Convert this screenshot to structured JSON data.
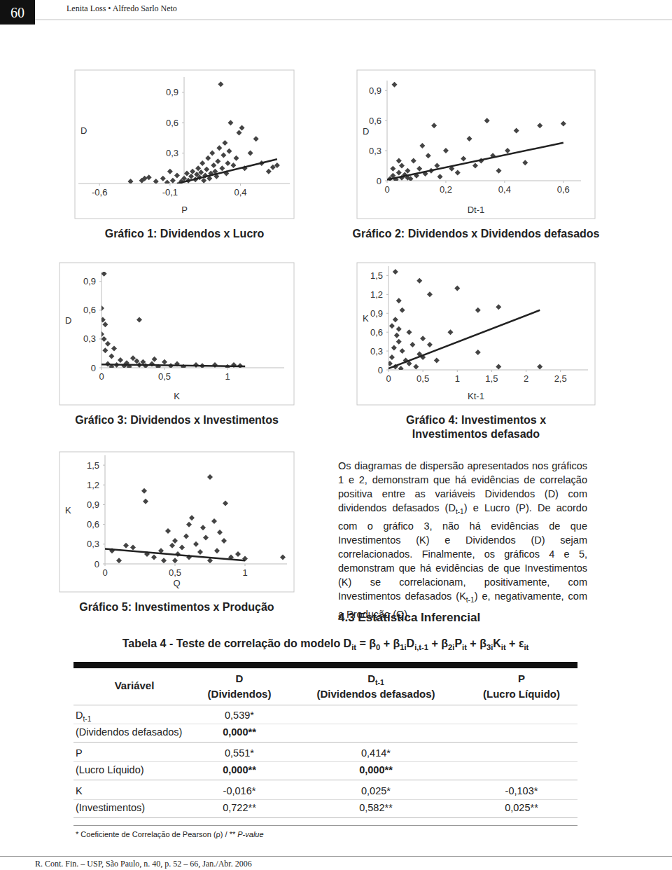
{
  "header": {
    "page": "60",
    "authors": "Lenita Loss  •  Alfredo Sarlo Neto"
  },
  "chart_data": [
    {
      "type": "scatter",
      "title": "Gráfico 1: Dividendos x Lucro",
      "xlabel": "P",
      "ylabel": "D",
      "xlim": [
        -0.75,
        0.75
      ],
      "ylim": [
        0,
        1.05
      ],
      "xticks": [
        {
          "value": -0.6,
          "label": "-0,6"
        },
        {
          "value": -0.1,
          "label": "-0,1"
        },
        {
          "value": 0.4,
          "label": "0,4"
        }
      ],
      "yticks": [
        {
          "value": 0.3,
          "label": "0,3"
        },
        {
          "value": 0.6,
          "label": "0,6"
        },
        {
          "value": 0.9,
          "label": "0,9"
        }
      ],
      "series": [
        {
          "type": "scatter",
          "marker": "diamond",
          "color": "#444444",
          "x": [
            -0.38,
            -0.3,
            -0.28,
            -0.25,
            -0.2,
            -0.15,
            -0.12,
            -0.1,
            -0.08,
            -0.05,
            -0.02,
            0,
            0.02,
            0.03,
            0.05,
            0.06,
            0.08,
            0.09,
            0.1,
            0.11,
            0.12,
            0.13,
            0.14,
            0.15,
            0.16,
            0.17,
            0.18,
            0.19,
            0.2,
            0.21,
            0.22,
            0.23,
            0.24,
            0.25,
            0.26,
            0.27,
            0.28,
            0.29,
            0.3,
            0.31,
            0.32,
            0.33,
            0.35,
            0.37,
            0.39,
            0.41,
            0.43,
            0.47,
            0.51,
            0.55,
            0.6,
            0.63,
            0.66
          ],
          "values": [
            0.02,
            0.03,
            0.05,
            0.06,
            0.02,
            0.05,
            0.01,
            0.12,
            0.03,
            0.08,
            0.02,
            0.05,
            0.1,
            0.03,
            0.07,
            0.12,
            0.04,
            0.09,
            0.15,
            0.06,
            0.11,
            0.2,
            0.03,
            0.08,
            0.14,
            0.25,
            0.05,
            0.1,
            0.3,
            0.18,
            0.12,
            0.07,
            0.22,
            0.35,
            0.98,
            0.15,
            0.28,
            0.4,
            0.1,
            0.2,
            0.32,
            0.6,
            0.18,
            0.25,
            0.5,
            0.55,
            0.15,
            0.3,
            0.44,
            0.2,
            0.12,
            0.16,
            0.18
          ]
        },
        {
          "type": "line",
          "line_style": "solid",
          "color": "#222222",
          "x": [
            -0.05,
            0.66
          ],
          "values": [
            0,
            0.24
          ]
        }
      ]
    },
    {
      "type": "scatter",
      "title": "Gráfico 2: Dividendos x Dividendos defasados",
      "xlabel": "Dt-1",
      "ylabel": "D",
      "xlim": [
        0,
        0.66
      ],
      "ylim": [
        0,
        1.0
      ],
      "xticks": [
        0,
        {
          "value": 0.2,
          "label": "0,2"
        },
        {
          "value": 0.4,
          "label": "0,4"
        },
        {
          "value": 0.6,
          "label": "0,6"
        }
      ],
      "yticks": [
        0,
        {
          "value": 0.3,
          "label": "0,3"
        },
        {
          "value": 0.6,
          "label": "0,6"
        },
        {
          "value": 0.9,
          "label": "0,9"
        }
      ],
      "series": [
        {
          "type": "scatter",
          "marker": "diamond",
          "color": "#444444",
          "x": [
            0.01,
            0.02,
            0.02,
            0.025,
            0.03,
            0.04,
            0.04,
            0.05,
            0.05,
            0.06,
            0.07,
            0.07,
            0.08,
            0.09,
            0.1,
            0.11,
            0.12,
            0.13,
            0.14,
            0.15,
            0.16,
            0.17,
            0.18,
            0.2,
            0.22,
            0.24,
            0.26,
            0.28,
            0.3,
            0.32,
            0.34,
            0.36,
            0.38,
            0.41,
            0.44,
            0.47,
            0.52,
            0.6
          ],
          "values": [
            0.02,
            0.05,
            0.12,
            0.96,
            0.01,
            0.08,
            0.2,
            0.03,
            0.15,
            0.06,
            0.1,
            0.03,
            0.02,
            0.2,
            0.05,
            0.12,
            0.35,
            0.07,
            0.25,
            0.1,
            0.55,
            0.15,
            0.04,
            0.3,
            0.12,
            0.08,
            0.22,
            0.42,
            0.15,
            0.2,
            0.6,
            0.25,
            0.1,
            0.3,
            0.5,
            0.18,
            0.55,
            0.57
          ]
        },
        {
          "type": "line",
          "line_style": "solid",
          "color": "#222222",
          "x": [
            0,
            0.6
          ],
          "values": [
            0.01,
            0.38
          ]
        }
      ]
    },
    {
      "type": "scatter",
      "title": "Gráfico 3: Dividendos x Investimentos",
      "xlabel": "K",
      "ylabel": "D",
      "xlim": [
        0,
        1.45
      ],
      "ylim": [
        0,
        1.0
      ],
      "xticks": [
        0,
        {
          "value": 0.5,
          "label": "0,5"
        },
        1
      ],
      "yticks": [
        0,
        {
          "value": 0.3,
          "label": "0,3"
        },
        {
          "value": 0.6,
          "label": "0,6"
        },
        {
          "value": 0.9,
          "label": "0,9"
        }
      ],
      "series": [
        {
          "type": "scatter",
          "marker": "diamond",
          "color": "#444444",
          "x": [
            0.02,
            0,
            0.01,
            0.03,
            0,
            0.02,
            0.05,
            0.03,
            0.08,
            0.1,
            0.15,
            0.2,
            0.25,
            0.3,
            0.33,
            0.35,
            0.4,
            0.45,
            0.3,
            0.5,
            0.55,
            0.6,
            0.65,
            0.75,
            0.8,
            0.9,
            1.0,
            1.05,
            1.1,
            0.12,
            0.18,
            0.05,
            0.22,
            0.28,
            0.42,
            0.08
          ],
          "values": [
            0.98,
            0.62,
            0.5,
            0.45,
            0.35,
            0.3,
            0.25,
            0.18,
            0.12,
            0.2,
            0.08,
            0.05,
            0.1,
            0.03,
            0.06,
            0.02,
            0.04,
            0.01,
            0.5,
            0.06,
            0.02,
            0.04,
            0.01,
            0.03,
            0.02,
            0.03,
            0.01,
            0.03,
            0.02,
            0.03,
            0.02,
            0.04,
            0.01,
            0.07,
            0.09,
            0.01
          ]
        },
        {
          "type": "line",
          "line_style": "solid",
          "color": "#222222",
          "x": [
            0,
            1.14
          ],
          "values": [
            0.035,
            0.015
          ]
        }
      ]
    },
    {
      "type": "scatter",
      "title": [
        "Gráfico 4: Investimentos x",
        "Investimentos defasado"
      ],
      "xlabel": "Kt-1",
      "ylabel": "K",
      "xlim": [
        0,
        2.9
      ],
      "ylim": [
        0,
        1.65
      ],
      "xticks": [
        0,
        {
          "value": 0.5,
          "label": "0,5"
        },
        1,
        {
          "value": 1.5,
          "label": "1,5"
        },
        2,
        {
          "value": 2.5,
          "label": "2,5"
        }
      ],
      "yticks": [
        0,
        {
          "value": 0.3,
          "label": "0,3"
        },
        {
          "value": 0.6,
          "label": "0,6"
        },
        {
          "value": 0.9,
          "label": "0,9"
        },
        {
          "value": 1.2,
          "label": "1,2"
        },
        {
          "value": 1.5,
          "label": "1,5"
        }
      ],
      "series": [
        {
          "type": "scatter",
          "marker": "diamond",
          "color": "#444444",
          "x": [
            0.1,
            0.45,
            0.15,
            0.2,
            0.1,
            0.05,
            0.15,
            0.3,
            0.6,
            1.0,
            1.3,
            0.9,
            1.6,
            1.3,
            2.2,
            1.6,
            0.5,
            0.3,
            0.1,
            0.05,
            0.2,
            0.35,
            0.25,
            0.4,
            0.15,
            0.08,
            0.12,
            0.6,
            0.7,
            0.5,
            0.02,
            0.18,
            0.45
          ],
          "values": [
            1.56,
            1.42,
            1.1,
            0.95,
            0.8,
            0.7,
            0.65,
            0.6,
            1.2,
            1.3,
            0.95,
            0.6,
            1.0,
            0.28,
            0.05,
            0.05,
            0.2,
            0.1,
            0.05,
            0.2,
            0.3,
            0.4,
            0.15,
            0.05,
            0.45,
            0.35,
            0.55,
            0.4,
            0.15,
            0.5,
            0.1,
            0.02,
            0.25
          ]
        },
        {
          "type": "line",
          "line_style": "solid",
          "color": "#222222",
          "x": [
            0,
            2.2
          ],
          "values": [
            0.02,
            0.95
          ]
        }
      ]
    },
    {
      "type": "scatter",
      "title": "Gráfico 5: Investimentos x Produção",
      "xlabel": "Q",
      "ylabel": "K",
      "xlim": [
        0,
        1.3
      ],
      "ylim": [
        0,
        1.65
      ],
      "xticks": [
        0,
        {
          "value": 0.5,
          "label": "0,5"
        },
        1
      ],
      "yticks": [
        0,
        {
          "value": 0.3,
          "label": "0,3"
        },
        {
          "value": 0.6,
          "label": "0,6"
        },
        {
          "value": 0.9,
          "label": "0,9"
        },
        {
          "value": 1.2,
          "label": "1,2"
        },
        {
          "value": 1.5,
          "label": "1,5"
        }
      ],
      "series": [
        {
          "type": "scatter",
          "marker": "diamond",
          "color": "#444444",
          "x": [
            0.28,
            0.29,
            0.75,
            0.86,
            0.45,
            0.6,
            0.7,
            0.5,
            0.55,
            0.65,
            0.72,
            0.8,
            0.85,
            0.9,
            0.95,
            0.6,
            0.5,
            0.4,
            0.35,
            0.3,
            0.2,
            0.1,
            0.05,
            0.15,
            0.75,
            0.68,
            0.58,
            0.48,
            0.42,
            0.82,
            1.0,
            1.27,
            0.62,
            0.78,
            0.52
          ],
          "values": [
            1.11,
            0.95,
            1.32,
            0.92,
            0.5,
            0.6,
            0.55,
            0.35,
            0.25,
            0.3,
            0.4,
            0.2,
            0.35,
            0.1,
            0.15,
            0.1,
            0.05,
            0.2,
            0.1,
            0.15,
            0.25,
            0.05,
            0.2,
            0.28,
            0.05,
            0.18,
            0.42,
            0.28,
            0.05,
            0.48,
            0.08,
            0.1,
            0.7,
            0.65,
            0.15
          ]
        },
        {
          "type": "line",
          "line_style": "solid",
          "color": "#222222",
          "x": [
            0,
            1.0
          ],
          "values": [
            0.23,
            0.05
          ]
        }
      ]
    }
  ],
  "body": {
    "paragraph": [
      "Os diagramas de dispersão apresentados nos gráficos 1 e 2, demonstram que há evidências de correlação positiva entre as variáveis Dividendos (D) com dividendos defasados (D",
      {
        "sub": "t-1"
      },
      ") e Lucro (P). De acordo com o gráfico 3, não há evidências de que Investimentos (K) e Dividendos (D) sejam correlacionados. Finalmente, os gráficos 4 e 5, demonstram que há evidências de que Investimentos (K) se correlacionam, positivamente, com Investimentos defasados (K",
      {
        "sub": "t-1"
      },
      ") e, negativamente, com a Produção (Q)."
    ],
    "heading": "4.3 Estatística Inferencial"
  },
  "table": {
    "title": [
      "Tabela 4 - Teste de correlação do modelo D",
      {
        "sub": "it"
      },
      " = β",
      {
        "sub": "0"
      },
      " + β",
      {
        "sub": "1i"
      },
      "D",
      {
        "sub": "i,t-1"
      },
      " + β",
      {
        "sub": "2i"
      },
      "P",
      {
        "sub": "it"
      },
      " + β",
      {
        "sub": "3i"
      },
      "K",
      {
        "sub": "it"
      },
      " + ε",
      {
        "sub": "it"
      }
    ],
    "header": [
      [
        [
          "Variável"
        ]
      ],
      [
        [
          "D"
        ],
        [
          "(Dividendos)"
        ]
      ],
      [
        [
          "D",
          {
            "sub": "t-1"
          }
        ],
        [
          "(Dividendos defasados)"
        ]
      ],
      [
        [
          "P"
        ],
        [
          "(Lucro Líquido)"
        ]
      ]
    ],
    "rows": [
      {
        "label": [
          [
            "D",
            {
              "sub": "t-1"
            }
          ],
          [
            "(Dividendos defasados)"
          ]
        ],
        "cells": [
          {
            "coef": "0,539*",
            "p": "0,000**",
            "bold": true
          }
        ]
      },
      {
        "label": [
          [
            "P"
          ],
          [
            "(Lucro Líquido)"
          ]
        ],
        "cells": [
          {
            "coef": "0,551*",
            "p": "0,000**",
            "bold": true
          },
          {
            "coef": "0,414*",
            "p": "0,000**",
            "bold": true
          }
        ]
      },
      {
        "label": [
          [
            "K"
          ],
          [
            "(Investimentos)"
          ]
        ],
        "cells": [
          {
            "coef": "-0,016*",
            "p": "0,722**",
            "bold": false
          },
          {
            "coef": "0,025*",
            "p": "0,582**",
            "bold": false
          },
          {
            "coef": "-0,103*",
            "p": "0,025**",
            "bold": false
          }
        ]
      }
    ],
    "footnote": [
      "* Coeficiente de Correlação de Pearson (ρ) / ** ",
      {
        "i": "P-value"
      }
    ]
  },
  "footer": "R. Cont. Fin. – USP, São Paulo, n. 40, p. 52 – 66, Jan./Abr. 2006"
}
